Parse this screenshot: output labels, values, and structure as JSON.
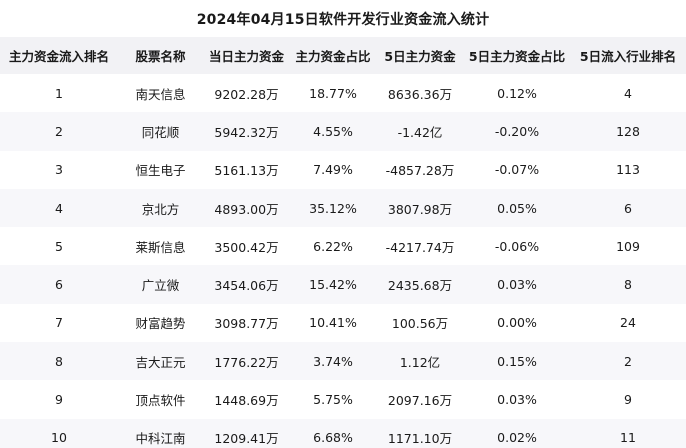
{
  "title": "2024年04月15日软件开发行业资金流入统计",
  "colors": {
    "header_bg": "#f2f2f5",
    "row_alt_bg": "#f7f7fa",
    "text": "#1a1a1a",
    "row_bg": "#ffffff"
  },
  "chart_data": {
    "type": "table",
    "title": "2024年04月15日软件开发行业资金流入统计",
    "columns": [
      "主力资金流入排名",
      "股票名称",
      "当日主力资金",
      "主力资金占比",
      "5日主力资金",
      "5日主力资金占比",
      "5日流入行业排名"
    ],
    "rows": [
      [
        "1",
        "南天信息",
        "9202.28万",
        "18.77%",
        "8636.36万",
        "0.12%",
        "4"
      ],
      [
        "2",
        "同花顺",
        "5942.32万",
        "4.55%",
        "-1.42亿",
        "-0.20%",
        "128"
      ],
      [
        "3",
        "恒生电子",
        "5161.13万",
        "7.49%",
        "-4857.28万",
        "-0.07%",
        "113"
      ],
      [
        "4",
        "京北方",
        "4893.00万",
        "35.12%",
        "3807.98万",
        "0.05%",
        "6"
      ],
      [
        "5",
        "莱斯信息",
        "3500.42万",
        "6.22%",
        "-4217.74万",
        "-0.06%",
        "109"
      ],
      [
        "6",
        "广立微",
        "3454.06万",
        "15.42%",
        "2435.68万",
        "0.03%",
        "8"
      ],
      [
        "7",
        "财富趋势",
        "3098.77万",
        "10.41%",
        "100.56万",
        "0.00%",
        "24"
      ],
      [
        "8",
        "吉大正元",
        "1776.22万",
        "3.74%",
        "1.12亿",
        "0.15%",
        "2"
      ],
      [
        "9",
        "顶点软件",
        "1448.69万",
        "5.75%",
        "2097.16万",
        "0.03%",
        "9"
      ],
      [
        "10",
        "中科江南",
        "1209.41万",
        "6.68%",
        "1171.10万",
        "0.02%",
        "11"
      ]
    ]
  }
}
